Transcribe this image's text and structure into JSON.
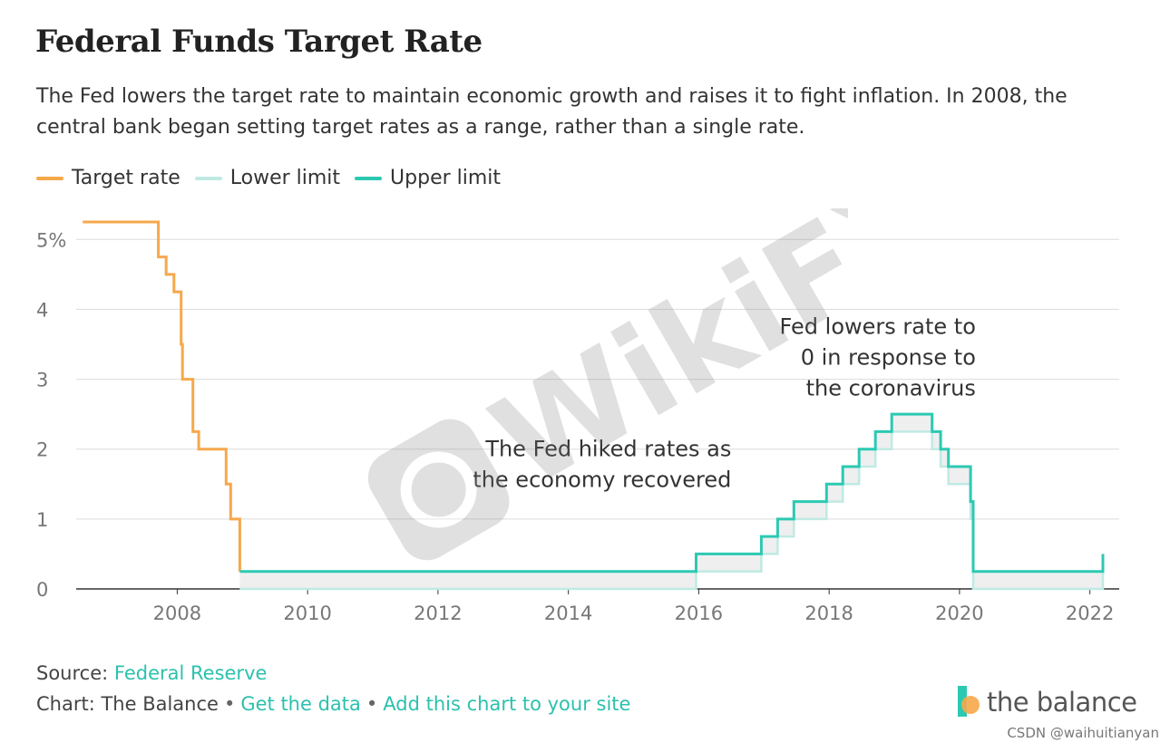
{
  "header": {
    "title": "Federal Funds Target Rate",
    "subtitle": "The Fed lowers the target rate to maintain economic growth and raises it to fight inflation. In 2008, the central bank began setting target rates as a range, rather than a single rate."
  },
  "legend": [
    {
      "label": "Target rate",
      "color": "#f6a84b"
    },
    {
      "label": "Lower limit",
      "color": "#bfeae3"
    },
    {
      "label": "Upper limit",
      "color": "#2cc9b2"
    }
  ],
  "chart_data": {
    "type": "line",
    "x_axis": {
      "min": 2006.45,
      "max": 2022.45,
      "ticks": [
        2008,
        2010,
        2012,
        2014,
        2016,
        2018,
        2020,
        2022
      ]
    },
    "y_axis": {
      "min": 0,
      "max": 5.25,
      "ticks": [
        0,
        1,
        2,
        3,
        4,
        5
      ],
      "tick_labels": [
        "0",
        "1",
        "2",
        "3",
        "4",
        "5%"
      ]
    },
    "grid": true,
    "legend_position": "top-left",
    "series": [
      {
        "name": "Target rate",
        "color": "#f6a84b",
        "step": true,
        "points": [
          [
            2006.55,
            5.25
          ],
          [
            2007.71,
            5.25
          ],
          [
            2007.71,
            4.75
          ],
          [
            2007.83,
            4.75
          ],
          [
            2007.83,
            4.5
          ],
          [
            2007.95,
            4.5
          ],
          [
            2007.95,
            4.25
          ],
          [
            2008.06,
            4.25
          ],
          [
            2008.06,
            3.5
          ],
          [
            2008.08,
            3.5
          ],
          [
            2008.08,
            3.0
          ],
          [
            2008.24,
            3.0
          ],
          [
            2008.24,
            2.25
          ],
          [
            2008.33,
            2.25
          ],
          [
            2008.33,
            2.0
          ],
          [
            2008.75,
            2.0
          ],
          [
            2008.75,
            1.5
          ],
          [
            2008.82,
            1.5
          ],
          [
            2008.82,
            1.0
          ],
          [
            2008.96,
            1.0
          ],
          [
            2008.96,
            0.25
          ]
        ]
      },
      {
        "name": "Lower limit",
        "color": "#bfeae3",
        "step": true,
        "points": [
          [
            2008.96,
            0.0
          ],
          [
            2015.96,
            0.0
          ],
          [
            2015.96,
            0.25
          ],
          [
            2016.96,
            0.25
          ],
          [
            2016.96,
            0.5
          ],
          [
            2017.21,
            0.5
          ],
          [
            2017.21,
            0.75
          ],
          [
            2017.46,
            0.75
          ],
          [
            2017.46,
            1.0
          ],
          [
            2017.96,
            1.0
          ],
          [
            2017.96,
            1.25
          ],
          [
            2018.21,
            1.25
          ],
          [
            2018.21,
            1.5
          ],
          [
            2018.46,
            1.5
          ],
          [
            2018.46,
            1.75
          ],
          [
            2018.71,
            1.75
          ],
          [
            2018.71,
            2.0
          ],
          [
            2018.96,
            2.0
          ],
          [
            2018.96,
            2.25
          ],
          [
            2019.58,
            2.25
          ],
          [
            2019.58,
            2.0
          ],
          [
            2019.71,
            2.0
          ],
          [
            2019.71,
            1.75
          ],
          [
            2019.83,
            1.75
          ],
          [
            2019.83,
            1.5
          ],
          [
            2020.17,
            1.5
          ],
          [
            2020.17,
            1.0
          ],
          [
            2020.21,
            1.0
          ],
          [
            2020.21,
            0.0
          ],
          [
            2022.2,
            0.0
          ],
          [
            2022.2,
            0.25
          ]
        ]
      },
      {
        "name": "Upper limit",
        "color": "#2cc9b2",
        "step": true,
        "points": [
          [
            2008.96,
            0.25
          ],
          [
            2015.96,
            0.25
          ],
          [
            2015.96,
            0.5
          ],
          [
            2016.96,
            0.5
          ],
          [
            2016.96,
            0.75
          ],
          [
            2017.21,
            0.75
          ],
          [
            2017.21,
            1.0
          ],
          [
            2017.46,
            1.0
          ],
          [
            2017.46,
            1.25
          ],
          [
            2017.96,
            1.25
          ],
          [
            2017.96,
            1.5
          ],
          [
            2018.21,
            1.5
          ],
          [
            2018.21,
            1.75
          ],
          [
            2018.46,
            1.75
          ],
          [
            2018.46,
            2.0
          ],
          [
            2018.71,
            2.0
          ],
          [
            2018.71,
            2.25
          ],
          [
            2018.96,
            2.25
          ],
          [
            2018.96,
            2.5
          ],
          [
            2019.58,
            2.5
          ],
          [
            2019.58,
            2.25
          ],
          [
            2019.71,
            2.25
          ],
          [
            2019.71,
            2.0
          ],
          [
            2019.83,
            2.0
          ],
          [
            2019.83,
            1.75
          ],
          [
            2020.17,
            1.75
          ],
          [
            2020.17,
            1.25
          ],
          [
            2020.21,
            1.25
          ],
          [
            2020.21,
            0.25
          ],
          [
            2022.2,
            0.25
          ],
          [
            2022.2,
            0.5
          ]
        ]
      }
    ],
    "annotations": [
      {
        "lines": [
          "The Fed hiked rates as",
          "the economy recovered"
        ],
        "x": 2016.5,
        "y": 1.9
      },
      {
        "lines": [
          "Fed lowers rate to",
          "0 in response to",
          "the coronavirus"
        ],
        "x": 2020.25,
        "y": 3.65
      }
    ]
  },
  "footer": {
    "source_prefix": "Source: ",
    "source_link": "Federal Reserve",
    "chart_prefix": "Chart: The Balance",
    "bullet": "•",
    "get_data": "Get the data",
    "add_chart": "Add this chart to your site"
  },
  "brand": {
    "name": "the balance",
    "accent": "#2cc9b2",
    "accent2": "#f6a84b"
  },
  "watermark_text": "WikiFX",
  "credit": "CSDN @waihuitianyan"
}
